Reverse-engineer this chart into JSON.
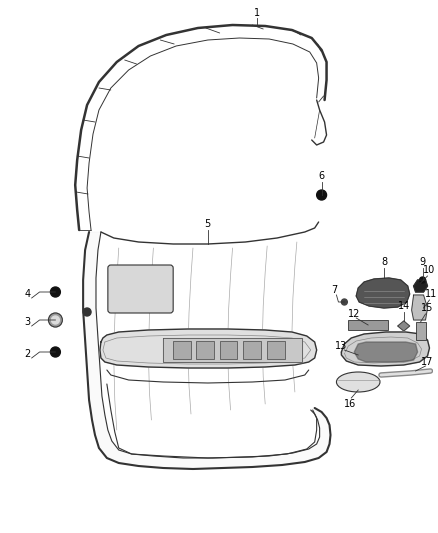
{
  "background_color": "#ffffff",
  "line_color": "#333333",
  "figure_width": 4.38,
  "figure_height": 5.33,
  "dpi": 100
}
